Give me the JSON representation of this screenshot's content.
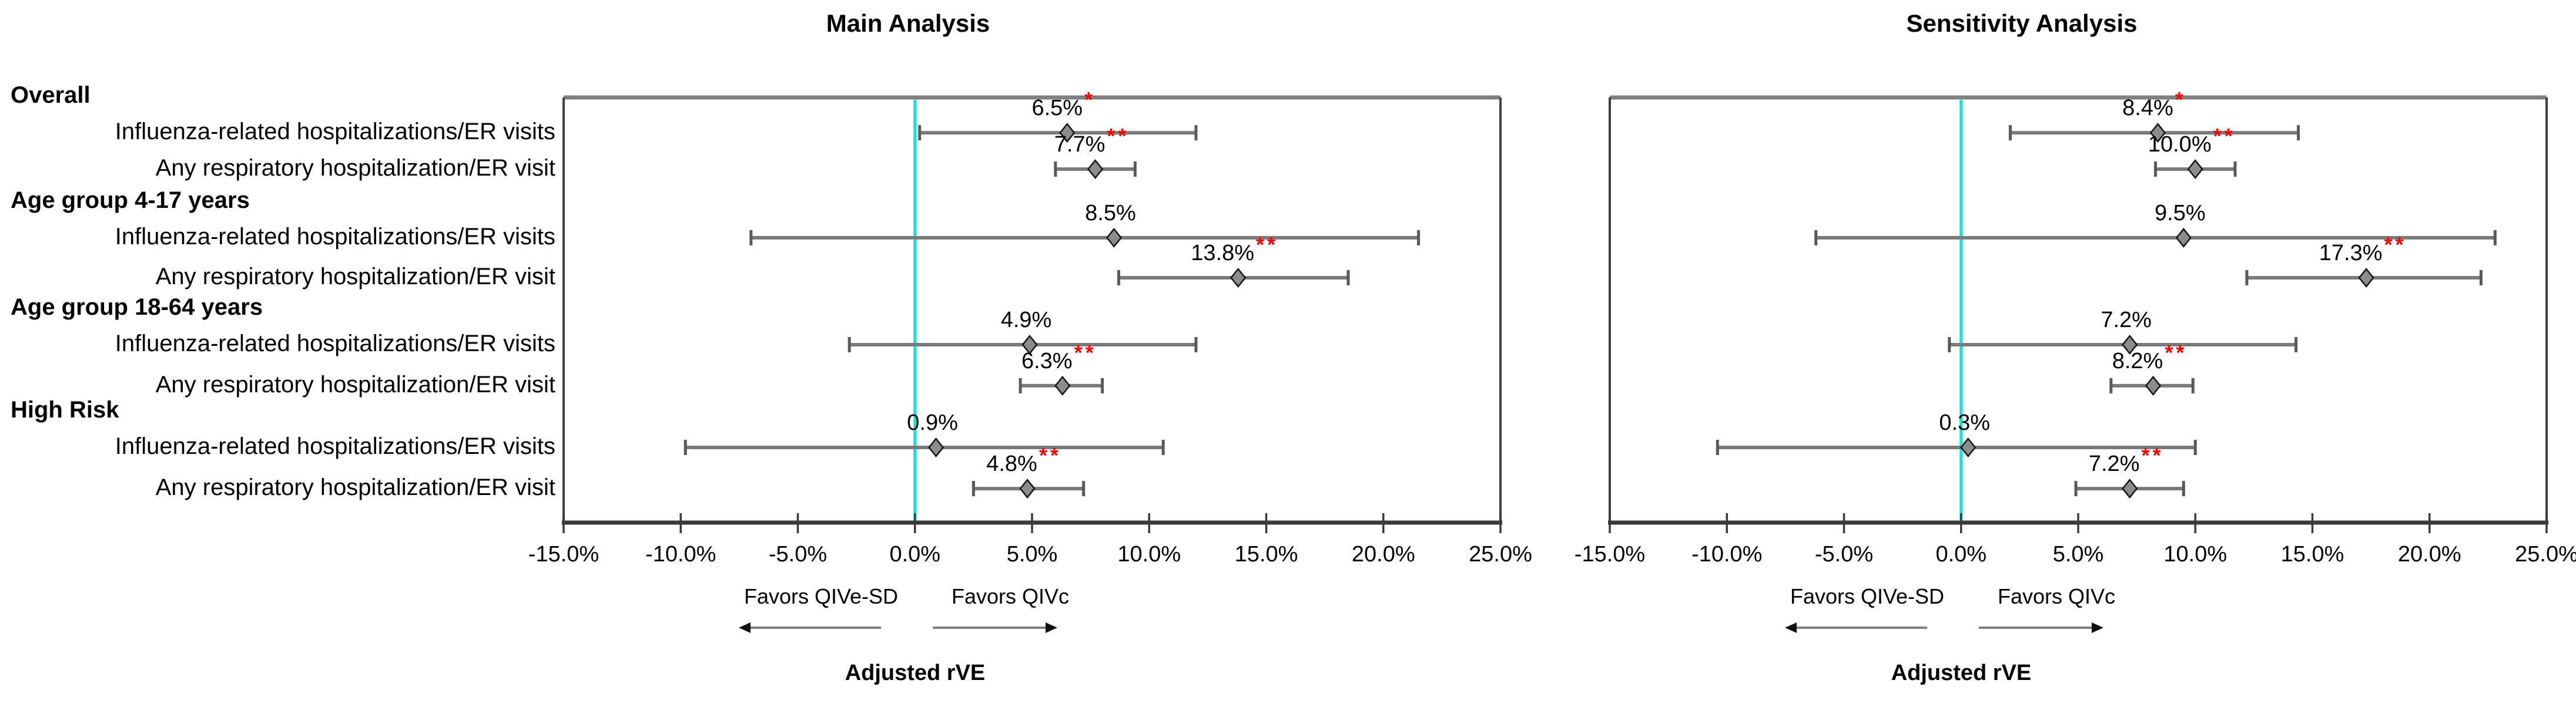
{
  "chart_data": {
    "type": "scatter",
    "subtype": "forest-plot",
    "panels": [
      {
        "title": "Main Analysis",
        "series": [
          {
            "row": "Overall / Influenza-related hospitalizations/ER visits",
            "display": "6.5%",
            "value": 6.5,
            "ci_low": 0.2,
            "ci_high": 12.0,
            "significance": "*"
          },
          {
            "row": "Overall / Any respiratory hospitalization/ER visit",
            "display": "7.7%",
            "value": 7.7,
            "ci_low": 6.0,
            "ci_high": 9.4,
            "significance": "**"
          },
          {
            "row": "Age group 4-17 years / Influenza-related hospitalizations/ER visits",
            "display": "8.5%",
            "value": 8.5,
            "ci_low": -7.0,
            "ci_high": 21.5,
            "significance": ""
          },
          {
            "row": "Age group 4-17 years / Any respiratory hospitalization/ER visit",
            "display": "13.8%",
            "value": 13.8,
            "ci_low": 8.7,
            "ci_high": 18.5,
            "significance": "**"
          },
          {
            "row": "Age group 18-64 years / Influenza-related hospitalizations/ER visits",
            "display": "4.9%",
            "value": 4.9,
            "ci_low": -2.8,
            "ci_high": 12.0,
            "significance": ""
          },
          {
            "row": "Age group 18-64 years / Any respiratory hospitalization/ER visit",
            "display": "6.3%",
            "value": 6.3,
            "ci_low": 4.5,
            "ci_high": 8.0,
            "significance": "**"
          },
          {
            "row": "High Risk / Influenza-related hospitalizations/ER visits",
            "display": "0.9%",
            "value": 0.9,
            "ci_low": -9.8,
            "ci_high": 10.6,
            "significance": ""
          },
          {
            "row": "High Risk / Any respiratory hospitalization/ER visit",
            "display": "4.8%",
            "value": 4.8,
            "ci_low": 2.5,
            "ci_high": 7.2,
            "significance": "**"
          }
        ]
      },
      {
        "title": "Sensitivity Analysis",
        "series": [
          {
            "row": "Overall / Influenza-related hospitalizations/ER visits",
            "display": "8.4%",
            "value": 8.4,
            "ci_low": 2.1,
            "ci_high": 14.4,
            "significance": "*"
          },
          {
            "row": "Overall / Any respiratory hospitalization/ER visit",
            "display": "10.0%",
            "value": 10.0,
            "ci_low": 8.3,
            "ci_high": 11.7,
            "significance": "**"
          },
          {
            "row": "Age group 4-17 years / Influenza-related hospitalizations/ER visits",
            "display": "9.5%",
            "value": 9.5,
            "ci_low": -6.2,
            "ci_high": 22.8,
            "significance": ""
          },
          {
            "row": "Age group 4-17 years / Any respiratory hospitalization/ER visit",
            "display": "17.3%",
            "value": 17.3,
            "ci_low": 12.2,
            "ci_high": 22.2,
            "significance": "**"
          },
          {
            "row": "Age group 18-64 years / Influenza-related hospitalizations/ER visits",
            "display": "7.2%",
            "value": 7.2,
            "ci_low": -0.5,
            "ci_high": 14.3,
            "significance": ""
          },
          {
            "row": "Age group 18-64 years / Any respiratory hospitalization/ER visit",
            "display": "8.2%",
            "value": 8.2,
            "ci_low": 6.4,
            "ci_high": 9.9,
            "significance": "**"
          },
          {
            "row": "High Risk / Influenza-related hospitalizations/ER visits",
            "display": "0.3%",
            "value": 0.3,
            "ci_low": -10.4,
            "ci_high": 10.0,
            "significance": ""
          },
          {
            "row": "High Risk / Any respiratory hospitalization/ER visit",
            "display": "7.2%",
            "value": 7.2,
            "ci_low": 4.9,
            "ci_high": 9.5,
            "significance": "**"
          }
        ]
      }
    ],
    "row_groups": [
      {
        "header": "Overall",
        "items": [
          "Influenza-related hospitalizations/ER visits",
          "Any respiratory hospitalization/ER visit"
        ]
      },
      {
        "header": "Age group 4-17 years",
        "items": [
          "Influenza-related hospitalizations/ER visits",
          "Any respiratory hospitalization/ER visit"
        ]
      },
      {
        "header": "Age group 18-64 years",
        "items": [
          "Influenza-related hospitalizations/ER visits",
          "Any respiratory hospitalization/ER visit"
        ]
      },
      {
        "header": "High Risk",
        "items": [
          "Influenza-related hospitalizations/ER visits",
          "Any respiratory hospitalization/ER visit"
        ]
      }
    ],
    "x_axis": {
      "min": -15,
      "max": 25,
      "step": 5,
      "tick_labels": [
        "-15.0%",
        "-10.0%",
        "-5.0%",
        "0.0%",
        "5.0%",
        "10.0%",
        "15.0%",
        "20.0%",
        "25.0%"
      ],
      "grid": false
    },
    "reference_line_value": 0,
    "footer": {
      "left_arrow_label": "Favors QIVe-SD",
      "right_arrow_label": "Favors QIVc",
      "axis_title": "Adjusted rVE"
    },
    "colors": {
      "ci_line": "#7a7a7a",
      "ci_cap": "#595959",
      "marker_fill": "#8c8c8c",
      "marker_border": "#141414",
      "reference_line": "#19E2D3",
      "significance": "#FF0000",
      "axis": "#3a3a3a",
      "box_border": "#808080",
      "text": "#000000"
    }
  }
}
